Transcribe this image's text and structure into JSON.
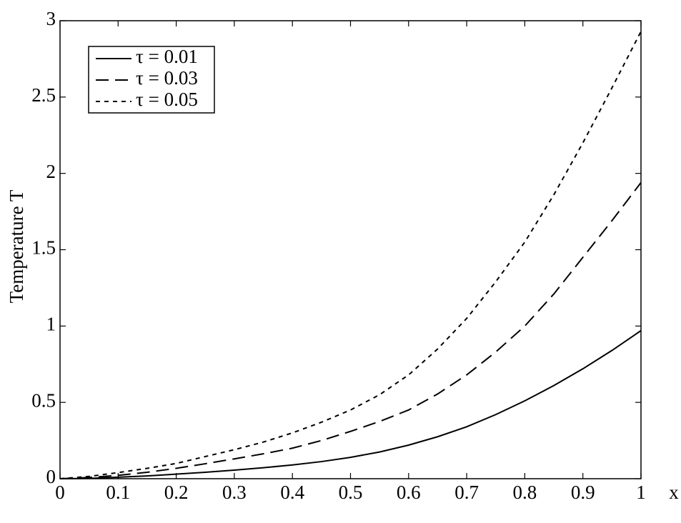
{
  "chart_data": {
    "type": "line",
    "x_label": "x",
    "y_label": "Temperature T",
    "x": [
      0,
      0.05,
      0.1,
      0.15,
      0.2,
      0.25,
      0.3,
      0.35,
      0.4,
      0.45,
      0.5,
      0.55,
      0.6,
      0.65,
      0.7,
      0.75,
      0.8,
      0.85,
      0.9,
      0.95,
      1
    ],
    "series": [
      {
        "name": "τ = 0.01",
        "color": "#000000",
        "dash": "solid",
        "values": [
          0,
          0.002,
          0.01,
          0.018,
          0.03,
          0.042,
          0.056,
          0.072,
          0.09,
          0.112,
          0.14,
          0.175,
          0.22,
          0.275,
          0.34,
          0.42,
          0.51,
          0.61,
          0.72,
          0.84,
          0.97
        ]
      },
      {
        "name": "τ = 0.03",
        "color": "#000000",
        "dash": "dashed",
        "values": [
          0,
          0.008,
          0.022,
          0.042,
          0.068,
          0.098,
          0.13,
          0.163,
          0.2,
          0.25,
          0.31,
          0.375,
          0.45,
          0.555,
          0.68,
          0.83,
          1.0,
          1.21,
          1.45,
          1.69,
          1.94
        ]
      },
      {
        "name": "τ = 0.05",
        "color": "#000000",
        "dash": "dotted",
        "values": [
          0,
          0.015,
          0.04,
          0.068,
          0.1,
          0.145,
          0.19,
          0.24,
          0.3,
          0.37,
          0.45,
          0.55,
          0.68,
          0.85,
          1.05,
          1.29,
          1.55,
          1.86,
          2.2,
          2.56,
          2.93
        ]
      }
    ],
    "xlim": [
      0,
      1
    ],
    "xticks": [
      0,
      0.1,
      0.2,
      0.3,
      0.4,
      0.5,
      0.6,
      0.7,
      0.8,
      0.9,
      1
    ],
    "ylim": [
      0,
      3
    ],
    "yticks": [
      0,
      0.5,
      1,
      1.5,
      2,
      2.5,
      3
    ],
    "grid": false,
    "legend": "upper left"
  }
}
